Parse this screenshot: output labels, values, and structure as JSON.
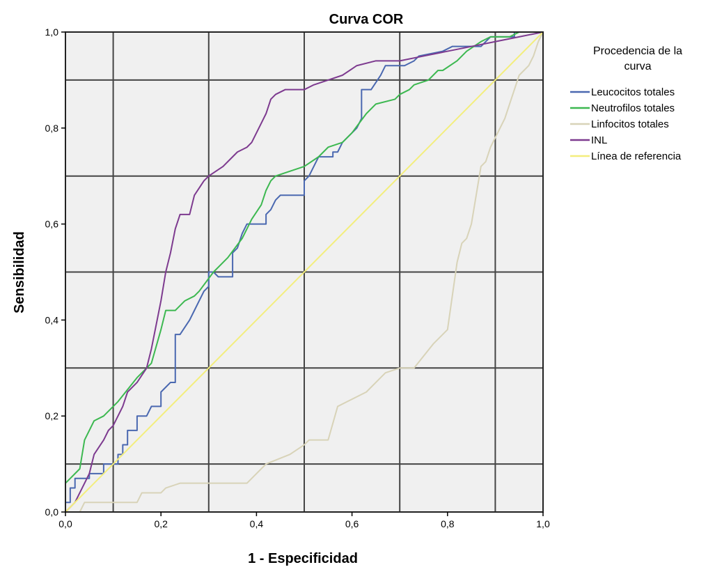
{
  "chart_data": {
    "type": "line",
    "title": "Curva COR",
    "xlabel": "1 - Especificidad",
    "ylabel": "Sensibilidad",
    "xlim": [
      0,
      1
    ],
    "ylim": [
      0,
      1
    ],
    "xticks": [
      "0,0",
      "0,2",
      "0,4",
      "0,6",
      "0,8",
      "1,0"
    ],
    "yticks": [
      "0,0",
      "0,2",
      "0,4",
      "0,6",
      "0,8",
      "1,0"
    ],
    "grid": true,
    "legend": {
      "title_lines": [
        "Procedencia de la",
        "curva"
      ],
      "placement": "right"
    },
    "series": [
      {
        "name": "Leucocitos totales",
        "color": "#4a68b0",
        "points": [
          [
            0,
            0
          ],
          [
            0,
            0.02
          ],
          [
            0.01,
            0.02
          ],
          [
            0.01,
            0.05
          ],
          [
            0.02,
            0.05
          ],
          [
            0.02,
            0.07
          ],
          [
            0.05,
            0.07
          ],
          [
            0.05,
            0.08
          ],
          [
            0.08,
            0.08
          ],
          [
            0.08,
            0.1
          ],
          [
            0.11,
            0.1
          ],
          [
            0.11,
            0.12
          ],
          [
            0.12,
            0.12
          ],
          [
            0.12,
            0.14
          ],
          [
            0.13,
            0.14
          ],
          [
            0.13,
            0.17
          ],
          [
            0.15,
            0.17
          ],
          [
            0.15,
            0.2
          ],
          [
            0.17,
            0.2
          ],
          [
            0.18,
            0.22
          ],
          [
            0.2,
            0.22
          ],
          [
            0.2,
            0.25
          ],
          [
            0.21,
            0.26
          ],
          [
            0.22,
            0.27
          ],
          [
            0.23,
            0.27
          ],
          [
            0.23,
            0.37
          ],
          [
            0.24,
            0.37
          ],
          [
            0.26,
            0.4
          ],
          [
            0.27,
            0.42
          ],
          [
            0.28,
            0.44
          ],
          [
            0.29,
            0.46
          ],
          [
            0.3,
            0.47
          ],
          [
            0.3,
            0.5
          ],
          [
            0.31,
            0.5
          ],
          [
            0.32,
            0.49
          ],
          [
            0.35,
            0.49
          ],
          [
            0.35,
            0.54
          ],
          [
            0.36,
            0.55
          ],
          [
            0.37,
            0.58
          ],
          [
            0.38,
            0.6
          ],
          [
            0.42,
            0.6
          ],
          [
            0.42,
            0.62
          ],
          [
            0.43,
            0.63
          ],
          [
            0.44,
            0.65
          ],
          [
            0.45,
            0.66
          ],
          [
            0.5,
            0.66
          ],
          [
            0.5,
            0.69
          ],
          [
            0.51,
            0.7
          ],
          [
            0.53,
            0.74
          ],
          [
            0.56,
            0.74
          ],
          [
            0.56,
            0.75
          ],
          [
            0.57,
            0.75
          ],
          [
            0.58,
            0.77
          ],
          [
            0.6,
            0.79
          ],
          [
            0.61,
            0.8
          ],
          [
            0.62,
            0.82
          ],
          [
            0.62,
            0.88
          ],
          [
            0.64,
            0.88
          ],
          [
            0.66,
            0.91
          ],
          [
            0.67,
            0.93
          ],
          [
            0.71,
            0.93
          ],
          [
            0.73,
            0.94
          ],
          [
            0.74,
            0.95
          ],
          [
            0.79,
            0.96
          ],
          [
            0.81,
            0.97
          ],
          [
            0.87,
            0.97
          ],
          [
            0.89,
            0.99
          ],
          [
            0.94,
            0.99
          ],
          [
            0.94,
            1
          ],
          [
            1,
            1
          ]
        ]
      },
      {
        "name": "Neutrofilos totales",
        "color": "#3cb850",
        "points": [
          [
            0,
            0
          ],
          [
            0,
            0.06
          ],
          [
            0.01,
            0.07
          ],
          [
            0.02,
            0.08
          ],
          [
            0.03,
            0.09
          ],
          [
            0.04,
            0.15
          ],
          [
            0.06,
            0.19
          ],
          [
            0.08,
            0.2
          ],
          [
            0.11,
            0.23
          ],
          [
            0.15,
            0.28
          ],
          [
            0.18,
            0.31
          ],
          [
            0.2,
            0.38
          ],
          [
            0.21,
            0.42
          ],
          [
            0.23,
            0.42
          ],
          [
            0.25,
            0.44
          ],
          [
            0.27,
            0.45
          ],
          [
            0.28,
            0.46
          ],
          [
            0.31,
            0.5
          ],
          [
            0.34,
            0.53
          ],
          [
            0.37,
            0.57
          ],
          [
            0.39,
            0.61
          ],
          [
            0.41,
            0.64
          ],
          [
            0.42,
            0.67
          ],
          [
            0.43,
            0.69
          ],
          [
            0.44,
            0.7
          ],
          [
            0.47,
            0.71
          ],
          [
            0.5,
            0.72
          ],
          [
            0.53,
            0.74
          ],
          [
            0.55,
            0.76
          ],
          [
            0.58,
            0.77
          ],
          [
            0.6,
            0.79
          ],
          [
            0.63,
            0.83
          ],
          [
            0.65,
            0.85
          ],
          [
            0.69,
            0.86
          ],
          [
            0.7,
            0.87
          ],
          [
            0.72,
            0.88
          ],
          [
            0.73,
            0.89
          ],
          [
            0.76,
            0.9
          ],
          [
            0.78,
            0.92
          ],
          [
            0.79,
            0.92
          ],
          [
            0.82,
            0.94
          ],
          [
            0.84,
            0.96
          ],
          [
            0.87,
            0.98
          ],
          [
            0.89,
            0.99
          ],
          [
            0.93,
            0.99
          ],
          [
            0.95,
            1
          ],
          [
            1,
            1
          ]
        ]
      },
      {
        "name": "Linfocitos totales",
        "color": "#d8d3b8",
        "points": [
          [
            0,
            0
          ],
          [
            0.03,
            0
          ],
          [
            0.04,
            0.02
          ],
          [
            0.09,
            0.02
          ],
          [
            0.1,
            0.02
          ],
          [
            0.15,
            0.02
          ],
          [
            0.16,
            0.04
          ],
          [
            0.2,
            0.04
          ],
          [
            0.21,
            0.05
          ],
          [
            0.24,
            0.06
          ],
          [
            0.3,
            0.06
          ],
          [
            0.38,
            0.06
          ],
          [
            0.42,
            0.1
          ],
          [
            0.47,
            0.12
          ],
          [
            0.5,
            0.14
          ],
          [
            0.51,
            0.15
          ],
          [
            0.55,
            0.15
          ],
          [
            0.57,
            0.22
          ],
          [
            0.59,
            0.23
          ],
          [
            0.61,
            0.24
          ],
          [
            0.63,
            0.25
          ],
          [
            0.65,
            0.27
          ],
          [
            0.67,
            0.29
          ],
          [
            0.7,
            0.3
          ],
          [
            0.73,
            0.3
          ],
          [
            0.77,
            0.35
          ],
          [
            0.8,
            0.38
          ],
          [
            0.81,
            0.45
          ],
          [
            0.82,
            0.52
          ],
          [
            0.83,
            0.56
          ],
          [
            0.84,
            0.57
          ],
          [
            0.85,
            0.6
          ],
          [
            0.87,
            0.72
          ],
          [
            0.88,
            0.73
          ],
          [
            0.89,
            0.76
          ],
          [
            0.9,
            0.78
          ],
          [
            0.91,
            0.8
          ],
          [
            0.92,
            0.82
          ],
          [
            0.93,
            0.85
          ],
          [
            0.94,
            0.88
          ],
          [
            0.95,
            0.91
          ],
          [
            0.96,
            0.92
          ],
          [
            0.97,
            0.93
          ],
          [
            0.98,
            0.95
          ],
          [
            0.99,
            0.98
          ],
          [
            1,
            1
          ]
        ]
      },
      {
        "name": "INL",
        "color": "#7d3a8f",
        "points": [
          [
            0,
            0
          ],
          [
            0.01,
            0.01
          ],
          [
            0.02,
            0.02
          ],
          [
            0.03,
            0.04
          ],
          [
            0.04,
            0.06
          ],
          [
            0.05,
            0.08
          ],
          [
            0.06,
            0.12
          ],
          [
            0.08,
            0.15
          ],
          [
            0.09,
            0.17
          ],
          [
            0.1,
            0.18
          ],
          [
            0.11,
            0.2
          ],
          [
            0.12,
            0.22
          ],
          [
            0.13,
            0.25
          ],
          [
            0.15,
            0.27
          ],
          [
            0.17,
            0.3
          ],
          [
            0.18,
            0.34
          ],
          [
            0.19,
            0.39
          ],
          [
            0.2,
            0.44
          ],
          [
            0.21,
            0.5
          ],
          [
            0.22,
            0.54
          ],
          [
            0.23,
            0.59
          ],
          [
            0.24,
            0.62
          ],
          [
            0.26,
            0.62
          ],
          [
            0.27,
            0.66
          ],
          [
            0.29,
            0.69
          ],
          [
            0.3,
            0.7
          ],
          [
            0.33,
            0.72
          ],
          [
            0.35,
            0.74
          ],
          [
            0.36,
            0.75
          ],
          [
            0.38,
            0.76
          ],
          [
            0.39,
            0.77
          ],
          [
            0.4,
            0.79
          ],
          [
            0.41,
            0.81
          ],
          [
            0.42,
            0.83
          ],
          [
            0.43,
            0.86
          ],
          [
            0.44,
            0.87
          ],
          [
            0.46,
            0.88
          ],
          [
            0.5,
            0.88
          ],
          [
            0.52,
            0.89
          ],
          [
            0.55,
            0.9
          ],
          [
            0.58,
            0.91
          ],
          [
            0.61,
            0.93
          ],
          [
            0.65,
            0.94
          ],
          [
            0.7,
            0.94
          ],
          [
            0.75,
            0.95
          ],
          [
            0.8,
            0.96
          ],
          [
            0.85,
            0.97
          ],
          [
            0.9,
            0.98
          ],
          [
            0.95,
            0.99
          ],
          [
            1,
            1
          ]
        ]
      },
      {
        "name": "Línea de referencia",
        "color": "#f3ee7d",
        "points": [
          [
            0,
            0
          ],
          [
            1,
            1
          ]
        ]
      }
    ]
  }
}
